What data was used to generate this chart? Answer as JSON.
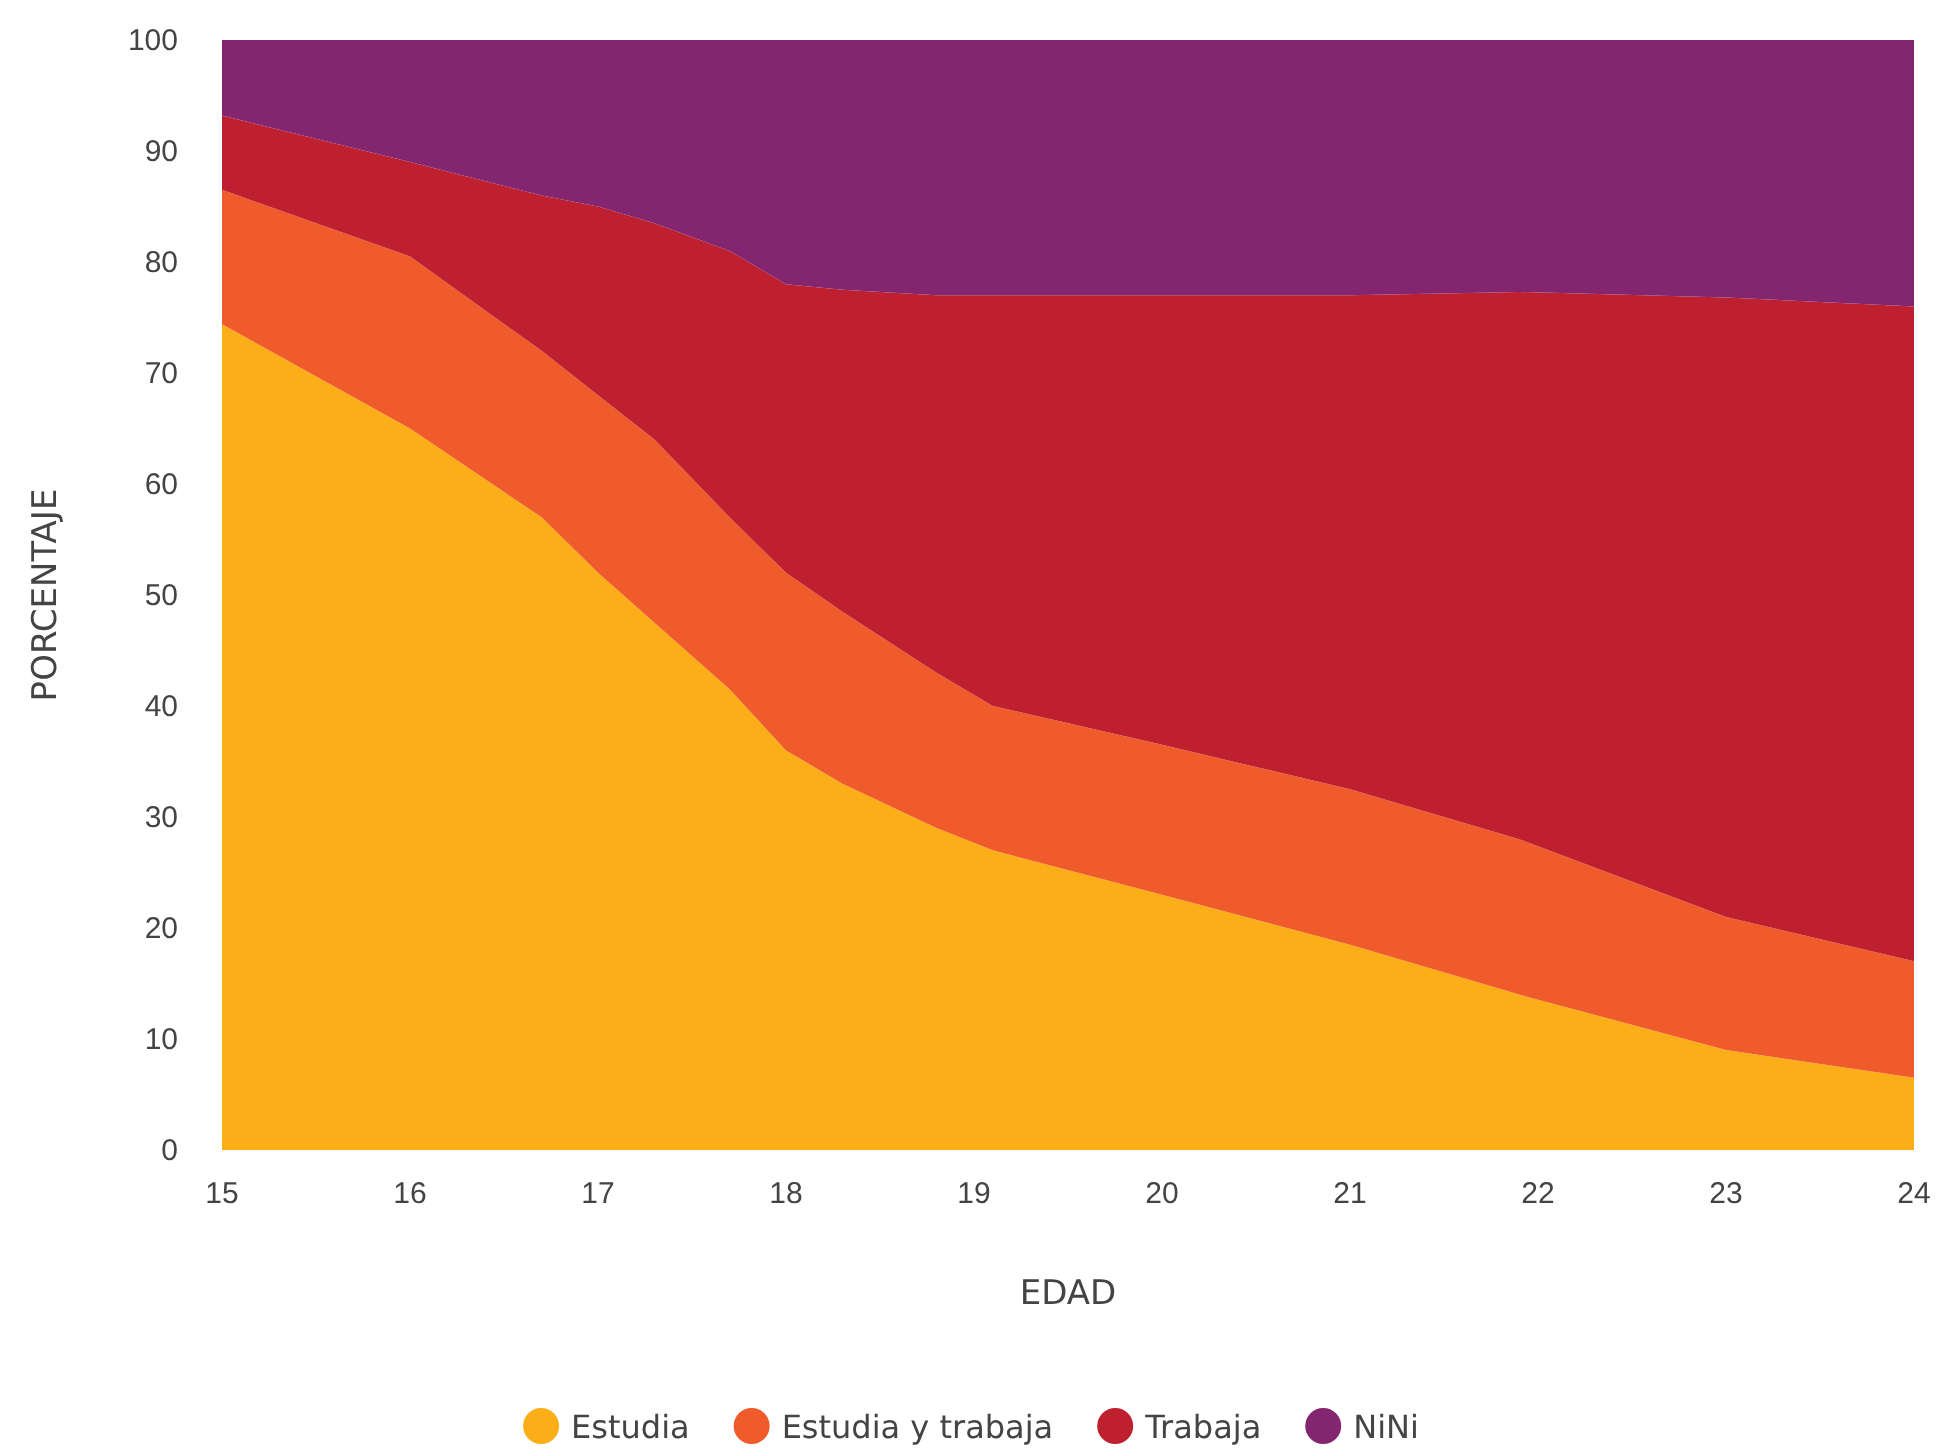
{
  "chart_data": {
    "type": "area",
    "stacked": true,
    "xlabel": "EDAD",
    "ylabel": "PORCENTAJE",
    "x": [
      15,
      16,
      16.7,
      17,
      17.3,
      17.7,
      18,
      18.3,
      18.8,
      19.1,
      20,
      21,
      21.9,
      23,
      24
    ],
    "series": [
      {
        "name": "Estudia",
        "color": "#fbae17",
        "values": [
          74.4,
          65,
          57,
          52,
          47.5,
          41.5,
          36,
          33,
          29,
          27,
          23,
          18.5,
          14,
          9,
          6.5
        ]
      },
      {
        "name": "Estudia y trabaja",
        "color": "#ef5b2b",
        "values": [
          12.1,
          15.5,
          15,
          16,
          16.5,
          15.5,
          16,
          15.5,
          14,
          13,
          13.5,
          14,
          14,
          12,
          10.5
        ]
      },
      {
        "name": "Trabaja",
        "color": "#be202f",
        "values": [
          6.7,
          8.5,
          14,
          17,
          19.5,
          24,
          26,
          29,
          34,
          37,
          40.5,
          44.5,
          49.3,
          55.8,
          59
        ]
      },
      {
        "name": "NiNi",
        "color": "#84256f",
        "values": [
          6.8,
          11,
          14,
          15,
          16.5,
          19,
          22,
          22.5,
          23,
          23,
          23,
          23,
          22.7,
          23.2,
          24
        ]
      }
    ],
    "xlim": [
      15,
      24
    ],
    "xticks": [
      15,
      16,
      17,
      18,
      19,
      20,
      21,
      22,
      23,
      24
    ],
    "ylim": [
      0,
      100
    ],
    "yticks": [
      0,
      10,
      20,
      30,
      40,
      50,
      60,
      70,
      80,
      90,
      100
    ],
    "grid": false,
    "legend": "bottom"
  }
}
